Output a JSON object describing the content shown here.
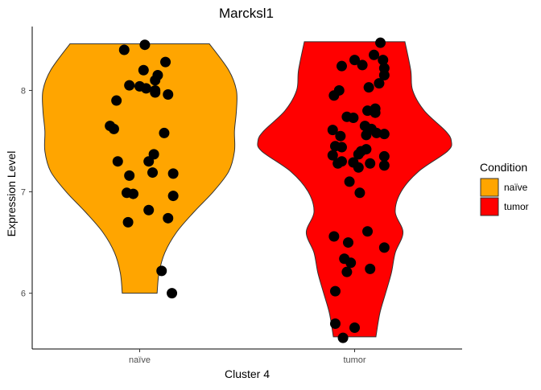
{
  "chart_data": {
    "type": "violin",
    "title": "Marcksl1",
    "xlabel": "Cluster 4",
    "ylabel": "Expression Level",
    "ylim": [
      5.45,
      8.63
    ],
    "yticks": [
      6,
      7,
      8
    ],
    "categories": [
      "naïve",
      "tumor"
    ],
    "grid": false,
    "legend": {
      "title": "Condition",
      "position": "right",
      "items": [
        {
          "label": "naïve",
          "color": "#FFA500"
        },
        {
          "label": "tumor",
          "color": "#FF0000"
        }
      ]
    },
    "series": [
      {
        "category": "naïve",
        "color": "#FFA500",
        "range": [
          6.0,
          8.46
        ],
        "density": [
          [
            6.0,
            0.18
          ],
          [
            6.2,
            0.2
          ],
          [
            6.4,
            0.26
          ],
          [
            6.6,
            0.38
          ],
          [
            6.8,
            0.56
          ],
          [
            7.0,
            0.76
          ],
          [
            7.2,
            0.92
          ],
          [
            7.4,
            0.98
          ],
          [
            7.6,
            0.98
          ],
          [
            7.8,
            1.0
          ],
          [
            8.0,
            1.0
          ],
          [
            8.2,
            0.92
          ],
          [
            8.46,
            0.72
          ]
        ],
        "points": [
          [
            -0.12,
            8.4
          ],
          [
            0.04,
            8.45
          ],
          [
            0.03,
            8.2
          ],
          [
            0.2,
            8.28
          ],
          [
            0.14,
            8.15
          ],
          [
            0.12,
            8.1
          ],
          [
            -0.08,
            8.05
          ],
          [
            -0.18,
            7.9
          ],
          [
            0.0,
            8.04
          ],
          [
            0.05,
            8.02
          ],
          [
            0.12,
            8.0
          ],
          [
            0.12,
            7.98
          ],
          [
            0.22,
            7.96
          ],
          [
            -0.23,
            7.65
          ],
          [
            -0.2,
            7.62
          ],
          [
            0.19,
            7.58
          ],
          [
            0.11,
            7.37
          ],
          [
            -0.17,
            7.3
          ],
          [
            0.07,
            7.3
          ],
          [
            -0.08,
            7.16
          ],
          [
            0.1,
            7.19
          ],
          [
            0.26,
            7.18
          ],
          [
            -0.1,
            6.99
          ],
          [
            -0.05,
            6.98
          ],
          [
            0.26,
            6.96
          ],
          [
            0.07,
            6.82
          ],
          [
            -0.09,
            6.7
          ],
          [
            0.22,
            6.74
          ],
          [
            0.17,
            6.22
          ],
          [
            0.25,
            6.0
          ]
        ]
      },
      {
        "category": "tumor",
        "color": "#FF0000",
        "range": [
          5.57,
          8.48
        ],
        "density": [
          [
            5.57,
            0.22
          ],
          [
            5.8,
            0.26
          ],
          [
            6.0,
            0.32
          ],
          [
            6.2,
            0.38
          ],
          [
            6.4,
            0.42
          ],
          [
            6.6,
            0.5
          ],
          [
            6.8,
            0.42
          ],
          [
            7.0,
            0.48
          ],
          [
            7.2,
            0.66
          ],
          [
            7.4,
            0.96
          ],
          [
            7.5,
            1.0
          ],
          [
            7.6,
            0.94
          ],
          [
            7.8,
            0.72
          ],
          [
            8.0,
            0.6
          ],
          [
            8.2,
            0.58
          ],
          [
            8.48,
            0.52
          ]
        ],
        "points": [
          [
            0.2,
            8.47
          ],
          [
            0.15,
            8.35
          ],
          [
            0.22,
            8.3
          ],
          [
            0.0,
            8.3
          ],
          [
            0.06,
            8.25
          ],
          [
            -0.1,
            8.24
          ],
          [
            0.23,
            8.22
          ],
          [
            0.23,
            8.15
          ],
          [
            0.19,
            8.07
          ],
          [
            0.11,
            8.03
          ],
          [
            -0.12,
            8.0
          ],
          [
            -0.16,
            7.95
          ],
          [
            0.16,
            7.82
          ],
          [
            0.1,
            7.8
          ],
          [
            0.16,
            7.78
          ],
          [
            -0.06,
            7.74
          ],
          [
            -0.01,
            7.73
          ],
          [
            0.08,
            7.65
          ],
          [
            0.13,
            7.62
          ],
          [
            -0.17,
            7.61
          ],
          [
            0.17,
            7.58
          ],
          [
            0.23,
            7.57
          ],
          [
            0.09,
            7.56
          ],
          [
            -0.11,
            7.55
          ],
          [
            -0.15,
            7.45
          ],
          [
            -0.1,
            7.44
          ],
          [
            0.09,
            7.42
          ],
          [
            0.05,
            7.4
          ],
          [
            -0.17,
            7.36
          ],
          [
            0.03,
            7.37
          ],
          [
            0.23,
            7.35
          ],
          [
            -0.1,
            7.3
          ],
          [
            -0.13,
            7.28
          ],
          [
            -0.01,
            7.29
          ],
          [
            0.12,
            7.28
          ],
          [
            0.23,
            7.26
          ],
          [
            0.03,
            7.24
          ],
          [
            -0.04,
            7.1
          ],
          [
            0.04,
            6.99
          ],
          [
            0.1,
            6.61
          ],
          [
            -0.16,
            6.56
          ],
          [
            -0.05,
            6.5
          ],
          [
            0.23,
            6.45
          ],
          [
            -0.08,
            6.34
          ],
          [
            -0.03,
            6.3
          ],
          [
            0.12,
            6.24
          ],
          [
            -0.06,
            6.21
          ],
          [
            -0.15,
            6.02
          ],
          [
            -0.15,
            5.7
          ],
          [
            -0.09,
            5.56
          ],
          [
            0.0,
            5.66
          ]
        ]
      }
    ]
  }
}
